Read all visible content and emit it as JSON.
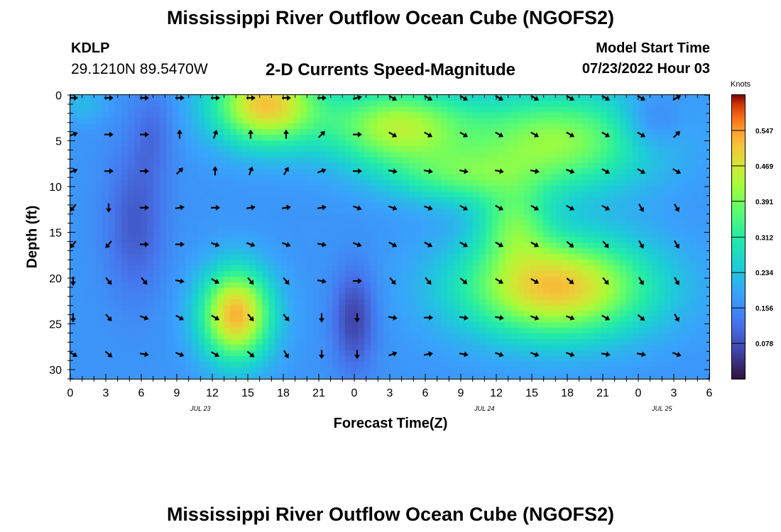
{
  "title": "Mississippi River Outflow Ocean Cube (NGOFS2)",
  "station": {
    "id": "KDLP",
    "coords": "29.1210N  89.5470W"
  },
  "model_start": {
    "label": "Model Start Time",
    "value": "07/23/2022 Hour 03"
  },
  "bottom_title": "Mississippi River Outflow Ocean Cube (NGOFS2)",
  "chart_data": {
    "type": "heatmap",
    "title": "2-D Currents Speed-Magnitude",
    "xlabel": "Forecast Time(Z)",
    "ylabel": "Depth (ft)",
    "x_tick_labels": [
      "0",
      "3",
      "6",
      "9",
      "12",
      "15",
      "18",
      "21",
      "0",
      "3",
      "6",
      "9",
      "12",
      "15",
      "18",
      "21",
      "0",
      "3",
      "6"
    ],
    "x_date_labels": [
      {
        "label": "JUL 23",
        "hour": 11
      },
      {
        "label": "JUL 24",
        "hour": 35
      },
      {
        "label": "JUL 25",
        "hour": 50
      }
    ],
    "xlim_hours": [
      0,
      54
    ],
    "y_ticks": [
      0,
      5,
      10,
      15,
      20,
      25,
      30
    ],
    "ylim": [
      0,
      31
    ],
    "y_inverted": true,
    "colorbar": {
      "label": "Knots",
      "ticks": [
        "0.547",
        "0.469",
        "0.391",
        "0.312",
        "0.234",
        "0.156",
        "0.078"
      ],
      "tick_values": [
        0.547,
        0.469,
        0.391,
        0.312,
        0.234,
        0.156,
        0.078
      ],
      "range": [
        0,
        0.625
      ]
    },
    "speed_blobs": [
      {
        "t": 16.5,
        "d": 1.0,
        "rt": 4.5,
        "rd": 4.5,
        "amp": 0.34
      },
      {
        "t": 27.5,
        "d": 3.5,
        "rt": 6.0,
        "rd": 4.5,
        "amp": 0.26
      },
      {
        "t": 41.0,
        "d": 5.0,
        "rt": 8.0,
        "rd": 5.5,
        "amp": 0.24
      },
      {
        "t": 14.0,
        "d": 24.0,
        "rt": 3.0,
        "rd": 5.0,
        "amp": 0.36
      },
      {
        "t": 41.0,
        "d": 21.0,
        "rt": 8.0,
        "rd": 5.5,
        "amp": 0.35
      },
      {
        "t": 33.0,
        "d": 9.0,
        "rt": 6.0,
        "rd": 3.0,
        "amp": 0.13
      },
      {
        "t": 37.5,
        "d": 14.0,
        "rt": 3.0,
        "rd": 4.0,
        "amp": 0.15
      },
      {
        "t": 1.0,
        "d": 1.0,
        "rt": 2.0,
        "rd": 2.0,
        "amp": 0.05
      },
      {
        "t": 5.5,
        "d": 14.0,
        "rt": 2.5,
        "rd": 8.0,
        "amp": -0.08
      },
      {
        "t": 7.0,
        "d": 4.0,
        "rt": 1.8,
        "rd": 5.0,
        "amp": -0.05
      },
      {
        "t": 24.0,
        "d": 24.5,
        "rt": 1.8,
        "rd": 5.5,
        "amp": -0.11
      },
      {
        "t": 49.0,
        "d": 3.0,
        "rt": 2.5,
        "rd": 3.0,
        "amp": -0.07
      }
    ],
    "vector_times": [
      0,
      3,
      6,
      9,
      12,
      15,
      18,
      21,
      24,
      27,
      30,
      33,
      36,
      39,
      42,
      45,
      48,
      51
    ],
    "vector_depths": [
      0,
      4,
      8,
      12,
      16,
      20,
      24,
      28
    ],
    "vector_directions": [
      [
        90,
        90,
        90,
        90,
        90,
        90,
        90,
        90,
        75,
        120,
        120,
        120,
        120,
        120,
        120,
        120,
        120,
        60
      ],
      [
        70,
        90,
        90,
        0,
        20,
        0,
        0,
        45,
        90,
        120,
        120,
        120,
        120,
        120,
        120,
        120,
        120,
        45
      ],
      [
        70,
        90,
        90,
        45,
        0,
        20,
        30,
        70,
        90,
        100,
        100,
        100,
        100,
        100,
        110,
        120,
        120,
        120
      ],
      [
        220,
        180,
        90,
        80,
        90,
        80,
        80,
        80,
        110,
        110,
        110,
        120,
        120,
        120,
        120,
        120,
        150,
        150
      ],
      [
        220,
        220,
        90,
        90,
        110,
        110,
        110,
        100,
        110,
        120,
        120,
        120,
        120,
        120,
        130,
        140,
        150,
        150
      ],
      [
        180,
        140,
        140,
        100,
        120,
        140,
        140,
        100,
        90,
        140,
        140,
        130,
        120,
        120,
        130,
        140,
        150,
        150
      ],
      [
        180,
        140,
        110,
        120,
        120,
        140,
        140,
        180,
        180,
        100,
        90,
        100,
        100,
        110,
        110,
        120,
        130,
        150
      ],
      [
        120,
        130,
        100,
        110,
        120,
        130,
        150,
        180,
        180,
        70,
        80,
        100,
        110,
        110,
        110,
        100,
        100,
        110
      ]
    ]
  }
}
